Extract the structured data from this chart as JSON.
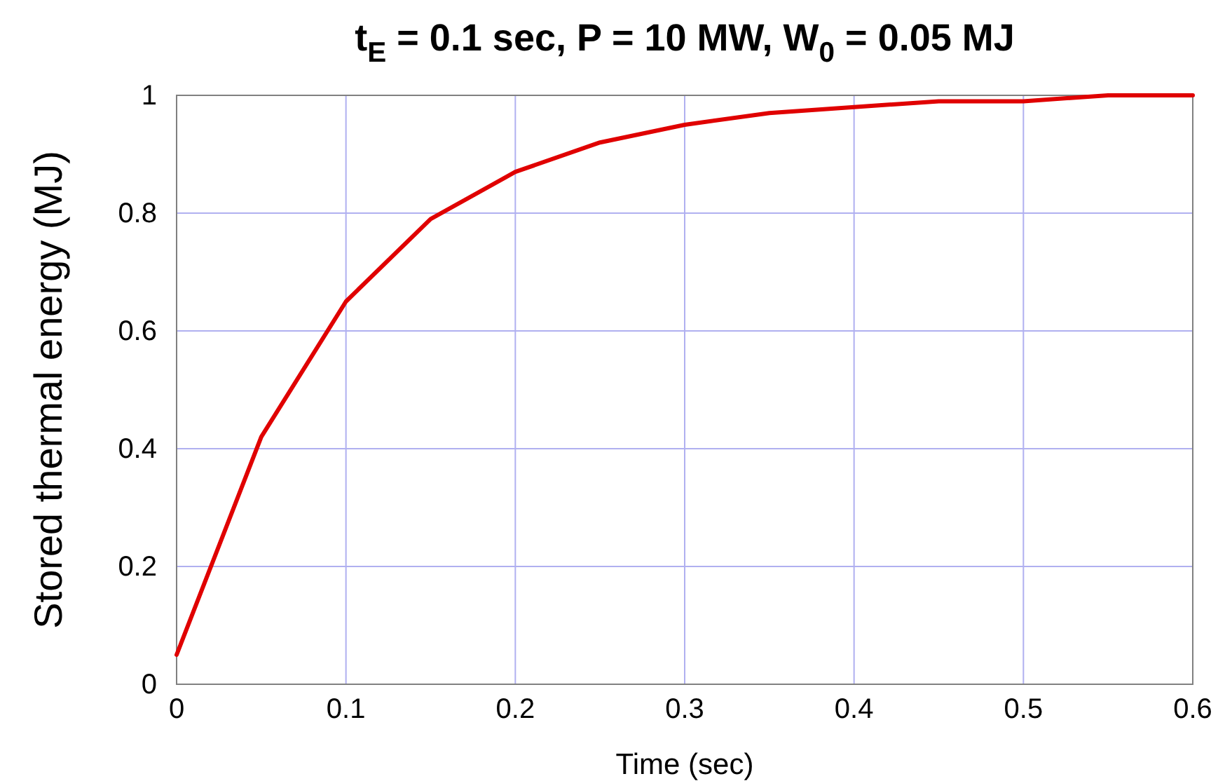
{
  "chart_data": {
    "type": "line",
    "title": "t$_{E}$ = 0.1 sec, P = 10 MW, W$_{0}$ = 0.05 MJ",
    "xlabel": "Time (sec)",
    "ylabel": "Stored thermal energy (MJ)",
    "x": [
      0,
      0.05,
      0.1,
      0.15,
      0.2,
      0.25,
      0.3,
      0.35,
      0.4,
      0.45,
      0.5,
      0.55,
      0.6
    ],
    "series": [
      {
        "color": "#e00000",
        "values": [
          0.05,
          0.42,
          0.65,
          0.79,
          0.87,
          0.92,
          0.95,
          0.97,
          0.98,
          0.99,
          0.99,
          1.0,
          1.0
        ]
      }
    ],
    "xlim": [
      0,
      0.6
    ],
    "xticks": [
      0,
      0.1,
      0.2,
      0.3,
      0.4,
      0.5,
      0.6
    ],
    "ylim": [
      0,
      1
    ],
    "yticks": [
      0,
      0.2,
      0.4,
      0.6,
      0.8,
      1
    ],
    "grid": true,
    "marker": "none",
    "line_style": "solid"
  }
}
